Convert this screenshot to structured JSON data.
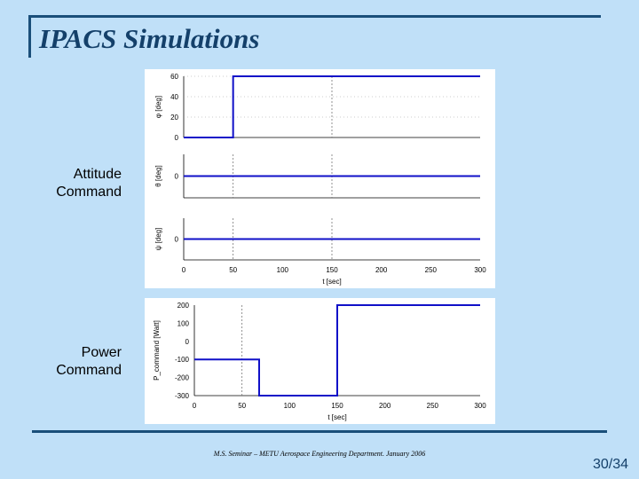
{
  "slide": {
    "title": "IPACS Simulations",
    "attitude_label": [
      "Attitude",
      "Command"
    ],
    "power_label": [
      "Power",
      "Command"
    ],
    "footer": "M.S. Seminar – METU Aerospace Engineering Department. January 2006",
    "page_number": "30/34"
  },
  "colors": {
    "line": "#1010c8",
    "title": "#14406a",
    "background": "#c0e0f8",
    "rule": "#1a4f7a"
  },
  "chart_data": [
    {
      "type": "line",
      "ylabel": "φ [deg]",
      "xlim": [
        0,
        300
      ],
      "ylim": [
        0,
        60
      ],
      "yticks": [
        "0",
        "20",
        "40",
        "60"
      ],
      "grid": "dashed vertical lines at t = 50, 150",
      "series": [
        {
          "x": [
            0,
            50,
            50,
            300
          ],
          "y": [
            0,
            0,
            60,
            60
          ]
        }
      ]
    },
    {
      "type": "line",
      "ylabel": "θ [deg]",
      "xlim": [
        0,
        300
      ],
      "yticks": [
        "0"
      ],
      "series": [
        {
          "x": [
            0,
            300
          ],
          "y": [
            0,
            0
          ]
        }
      ]
    },
    {
      "type": "line",
      "ylabel": "ψ [deg]",
      "xlabel": "t [sec]",
      "xlim": [
        0,
        300
      ],
      "xticks": [
        "0",
        "50",
        "100",
        "150",
        "200",
        "250",
        "300"
      ],
      "yticks": [
        "0"
      ],
      "series": [
        {
          "x": [
            0,
            300
          ],
          "y": [
            0,
            0
          ]
        }
      ]
    },
    {
      "type": "line",
      "ylabel": "P_command [Watt]",
      "xlabel": "t [sec]",
      "xlim": [
        0,
        300
      ],
      "ylim": [
        -300,
        200
      ],
      "xticks": [
        "0",
        "50",
        "100",
        "150",
        "200",
        "250",
        "300"
      ],
      "yticks": [
        "200",
        "100",
        "0",
        "-100",
        "-200",
        "-300"
      ],
      "series": [
        {
          "x": [
            0,
            68,
            68,
            150,
            150,
            300
          ],
          "y": [
            -100,
            -100,
            -300,
            -300,
            200,
            200
          ]
        }
      ]
    }
  ]
}
